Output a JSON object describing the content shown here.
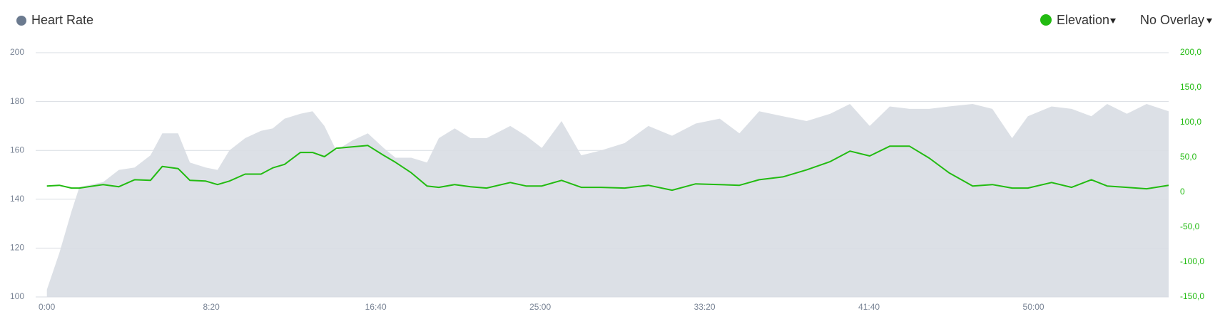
{
  "chart_data": {
    "type": "area-line",
    "title": "Heart Rate",
    "overlay_menu": "No Overlay",
    "x": [
      0,
      38,
      75,
      99,
      171,
      219,
      267,
      315,
      351,
      399,
      435,
      483,
      519,
      555,
      603,
      651,
      687,
      723,
      771,
      808,
      844,
      880,
      928,
      976,
      1024,
      1060,
      1108,
      1156,
      1192,
      1240,
      1288,
      1337,
      1409,
      1457,
      1505,
      1565,
      1625,
      1685,
      1757,
      1829,
      1901,
      1973,
      2046,
      2106,
      2166,
      2238,
      2310,
      2382,
      2442,
      2502,
      2563,
      2623,
      2683,
      2743,
      2815,
      2875,
      2935,
      2983,
      3055,
      3116,
      3176,
      3224,
      3284,
      3344,
      3411
    ],
    "series": [
      {
        "name": "Heart Rate",
        "color": "#dce0e6",
        "legend_color": "#6b7a8f",
        "values": [
          103,
          118,
          135,
          145,
          147,
          152,
          153,
          158,
          167,
          167,
          155,
          153,
          152,
          160,
          165,
          168,
          169,
          173,
          175,
          176,
          170,
          160,
          164,
          167,
          161,
          157,
          157,
          155,
          165,
          169,
          165,
          165,
          170,
          166,
          161,
          172,
          158,
          160,
          163,
          170,
          166,
          171,
          173,
          167,
          176,
          174,
          172,
          175,
          179,
          170,
          178,
          177,
          177,
          178,
          179,
          177,
          165,
          174,
          178,
          177,
          174,
          179,
          175,
          179,
          176
        ]
      },
      {
        "name": "Elevation",
        "color": "#22bb11",
        "axis": "y2",
        "values": [
          9,
          10,
          6,
          6,
          11,
          8,
          18,
          17,
          37,
          34,
          17,
          16,
          11,
          16,
          26,
          26,
          35,
          40,
          57,
          57,
          51,
          63,
          65,
          67,
          53,
          43,
          28,
          9,
          7,
          11,
          8,
          6,
          14,
          9,
          9,
          17,
          7,
          7,
          6,
          10,
          3,
          12,
          11,
          10,
          18,
          22,
          32,
          44,
          59,
          52,
          66,
          66,
          49,
          28,
          9,
          11,
          6,
          6,
          14,
          7,
          18,
          9,
          7,
          5,
          10
        ]
      }
    ],
    "xlim": [
      -34,
      3411
    ],
    "xticks": [
      {
        "value": 0,
        "label": "0:00"
      },
      {
        "value": 500,
        "label": "8:20"
      },
      {
        "value": 1000,
        "label": "16:40"
      },
      {
        "value": 1500,
        "label": "25:00"
      },
      {
        "value": 2000,
        "label": "33:20"
      },
      {
        "value": 2500,
        "label": "41:40"
      },
      {
        "value": 3000,
        "label": "50:00"
      }
    ],
    "ylim": [
      100,
      200
    ],
    "yticks": [
      100,
      120,
      140,
      160,
      180,
      200
    ],
    "y2lim": [
      -150,
      200
    ],
    "y2ticks": [
      {
        "value": -150,
        "label": "-150,0"
      },
      {
        "value": -100,
        "label": "-100,0"
      },
      {
        "value": -50,
        "label": "-50,0"
      },
      {
        "value": 0,
        "label": "0"
      },
      {
        "value": 50,
        "label": "50,0"
      },
      {
        "value": 100,
        "label": "100,0"
      },
      {
        "value": 150,
        "label": "150,0"
      },
      {
        "value": 200,
        "label": "200,0"
      }
    ],
    "grid": true
  }
}
